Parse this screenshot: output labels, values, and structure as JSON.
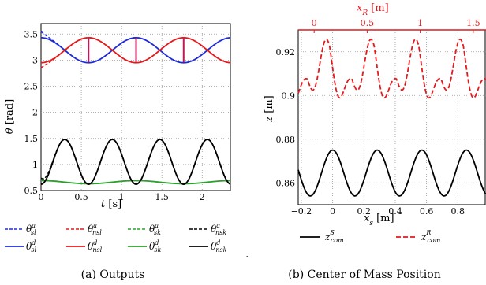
{
  "chart_data": [
    {
      "type": "line",
      "caption": "(a) Outputs",
      "xlabel": "t [s]",
      "ylabel": "θ [rad]",
      "xlim": [
        0,
        2.35
      ],
      "ylim": [
        0.5,
        3.7
      ],
      "xticks": [
        "0",
        "0.5",
        "1",
        "1.5",
        "2"
      ],
      "yticks": [
        "0.5",
        "1",
        "1.5",
        "2",
        "2.5",
        "3",
        "3.5"
      ],
      "grid": true,
      "series": [
        {
          "name": "θ^a_sl",
          "color": "#1f2bd6",
          "style": "dashed",
          "kind": "cos",
          "mean": 3.19,
          "amp": 0.24,
          "period": 1.18,
          "phase": 0.0,
          "start_offset": 0.12
        },
        {
          "name": "θ^a_nsl",
          "color": "#e41a1c",
          "style": "dashed",
          "kind": "cos",
          "mean": 3.19,
          "amp": -0.24,
          "period": 1.18,
          "phase": 0.0,
          "start_offset": -0.1
        },
        {
          "name": "θ^a_sk",
          "color": "#2ca02c",
          "style": "dashed",
          "kind": "cos",
          "mean": 0.66,
          "amp": 0.03,
          "period": 1.18,
          "phase": 0.0,
          "start_offset": 0.05
        },
        {
          "name": "θ^a_nsk",
          "color": "#000000",
          "style": "dashed",
          "kind": "knee",
          "mean": 1.05,
          "amp": 0.43,
          "period": 0.59,
          "phase": 0.0,
          "start_offset": 0.12
        },
        {
          "name": "θ^d_sl",
          "color": "#1f2bd6",
          "style": "solid",
          "kind": "cos",
          "mean": 3.19,
          "amp": 0.24,
          "period": 1.18,
          "phase": 0.0
        },
        {
          "name": "θ^d_nsl",
          "color": "#e41a1c",
          "style": "solid",
          "kind": "cos",
          "mean": 3.19,
          "amp": -0.24,
          "period": 1.18,
          "phase": 0.0
        },
        {
          "name": "θ^d_sk",
          "color": "#2ca02c",
          "style": "solid",
          "kind": "cos",
          "mean": 0.66,
          "amp": 0.03,
          "period": 1.18,
          "phase": 0.0
        },
        {
          "name": "θ^d_nsk",
          "color": "#000000",
          "style": "solid",
          "kind": "knee",
          "mean": 1.05,
          "amp": 0.43,
          "period": 0.59,
          "phase": 0.0
        }
      ],
      "impact_times": [
        0.59,
        1.18,
        1.77
      ],
      "impact_color": "#c2185b"
    },
    {
      "type": "line",
      "caption": "(b) Center of Mass Position",
      "xlabel": "x_s [m]",
      "ylabel": "z [m]",
      "x2label": "x_R [m]",
      "xlim": [
        -0.22,
        0.98
      ],
      "ylim": [
        0.85,
        0.93
      ],
      "xticks": [
        "−0.2",
        "0",
        "0.2",
        "0.4",
        "0.6",
        "0.8"
      ],
      "yticks": [
        "0.86",
        "0.88",
        "0.9",
        "0.92"
      ],
      "x2ticks": [
        "0",
        "0.5",
        "1",
        "1.5"
      ],
      "grid": true,
      "series": [
        {
          "name": "z^S_com",
          "color": "#000000",
          "style": "solid",
          "mean": 0.8645,
          "amp": 0.0105,
          "period": 0.285
        },
        {
          "name": "z^R_com",
          "color": "#e41a1c",
          "style": "dashed",
          "mean": 0.912,
          "amp": 0.014,
          "period": 0.285
        }
      ]
    }
  ],
  "captions": {
    "a": "(a) Outputs",
    "b": "(b) Center of Mass Position"
  },
  "legend_a": [
    {
      "base": "θ",
      "sub": "sl",
      "sup": "a"
    },
    {
      "base": "θ",
      "sub": "nsl",
      "sup": "a"
    },
    {
      "base": "θ",
      "sub": "sk",
      "sup": "a"
    },
    {
      "base": "θ",
      "sub": "nsk",
      "sup": "a"
    },
    {
      "base": "θ",
      "sub": "sl",
      "sup": "d"
    },
    {
      "base": "θ",
      "sub": "nsl",
      "sup": "d"
    },
    {
      "base": "θ",
      "sub": "sk",
      "sup": "d"
    },
    {
      "base": "θ",
      "sub": "nsk",
      "sup": "d"
    }
  ],
  "legend_b": [
    {
      "base": "z",
      "sub": "com",
      "sup": "S"
    },
    {
      "base": "z",
      "sub": "com",
      "sup": "R"
    }
  ],
  "axis_text": {
    "a_xlabel_base": "t",
    "a_xlabel_unit": " [s]",
    "a_ylabel_base": "θ",
    "a_ylabel_unit": " [rad]",
    "b_xlabel_base": "x",
    "b_xlabel_sub": "s",
    "b_xlabel_unit": " [m]",
    "b_ylabel_base": "z",
    "b_ylabel_unit": " [m]",
    "b_x2label_base": "x",
    "b_x2label_sub": "R",
    "b_x2label_unit": " [m]"
  },
  "separator": "."
}
